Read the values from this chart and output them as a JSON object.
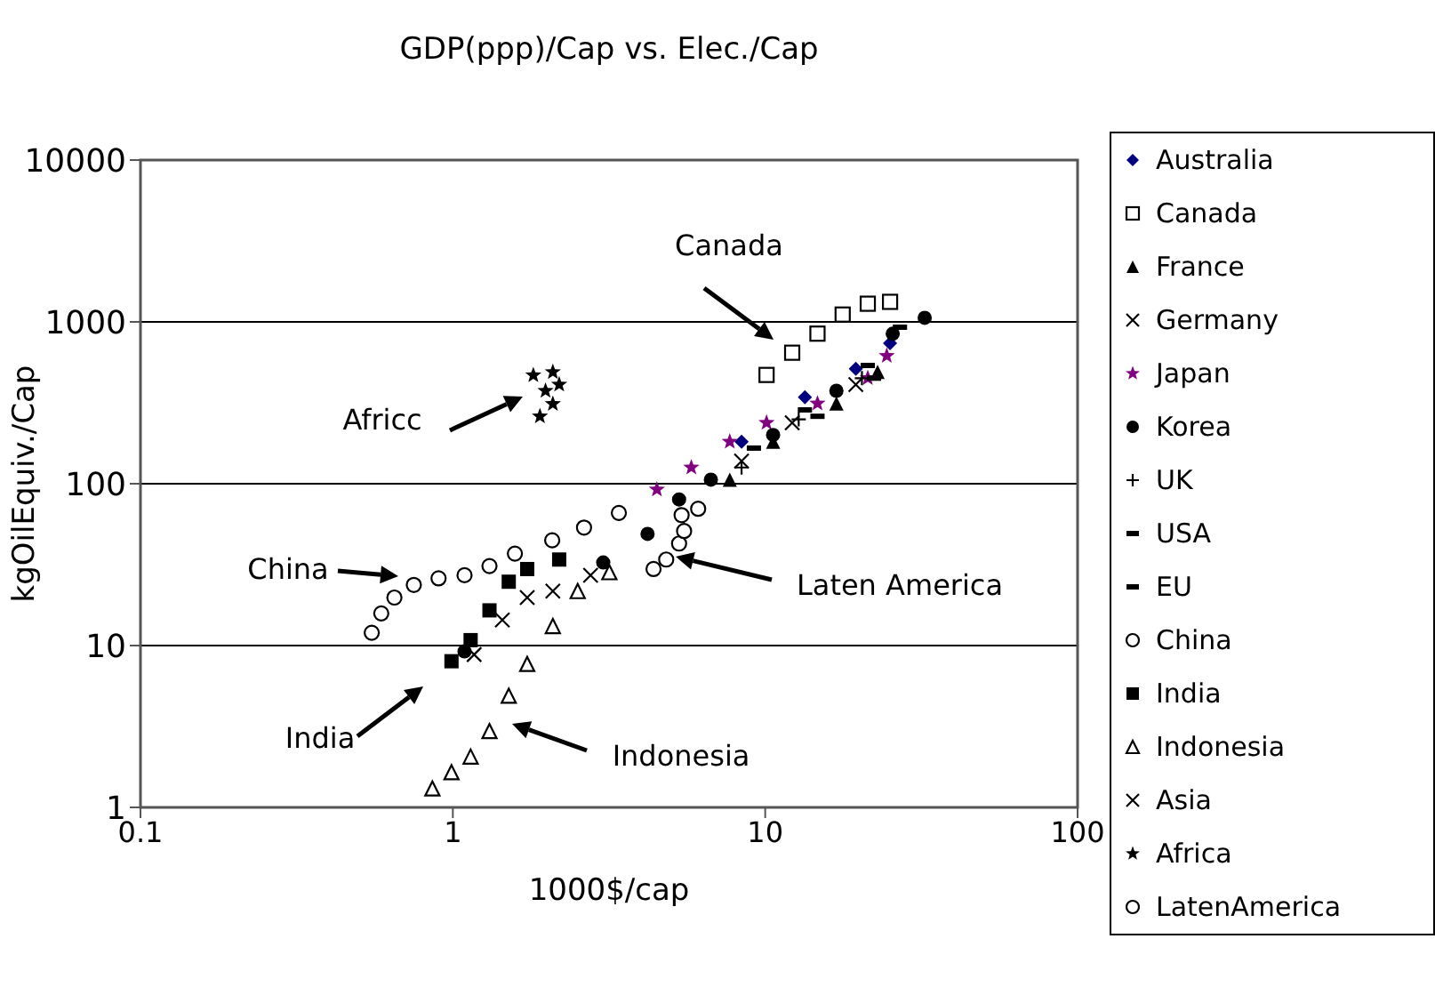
{
  "chart_data": {
    "type": "scatter",
    "title": "GDP(ppp)/Cap vs. Elec./Cap",
    "xlabel": "1000$/cap",
    "ylabel": "kgOilEquiv./Cap",
    "log": "xy",
    "xlim": [
      0.1,
      100
    ],
    "xticks": [
      0.1,
      1,
      10,
      100
    ],
    "ylim": [
      1,
      10000
    ],
    "yticks": [
      1,
      10,
      100,
      1000,
      10000
    ],
    "grid": "y",
    "legend": "right",
    "series": [
      {
        "name": "Australia",
        "color": "#000080",
        "marker": "diamond",
        "x": [
          8.4,
          13.4,
          19.5,
          25.1
        ],
        "values": [
          182,
          342,
          513,
          738
        ]
      },
      {
        "name": "Canada",
        "color": "#000000",
        "marker": "square-open",
        "x": [
          10.1,
          12.2,
          14.7,
          17.7,
          21.3,
          25.1
        ],
        "values": [
          470,
          645,
          846,
          1110,
          1295,
          1330
        ]
      },
      {
        "name": "France",
        "color": "#000000",
        "marker": "triangle",
        "x": [
          7.7,
          10.6,
          16.9,
          22.9
        ],
        "values": [
          106,
          182,
          313,
          491
        ]
      },
      {
        "name": "Germany",
        "color": "#000000",
        "marker": "cross",
        "x": [
          8.4,
          12.2,
          19.5
        ],
        "values": [
          138,
          238,
          410
        ]
      },
      {
        "name": "Japan",
        "color": "#800080",
        "marker": "star",
        "x": [
          4.5,
          5.8,
          7.7,
          10.1,
          14.7,
          21.3,
          24.5
        ],
        "values": [
          92,
          126,
          182,
          238,
          313,
          449,
          617
        ]
      },
      {
        "name": "Korea",
        "color": "#000000",
        "marker": "circle",
        "x": [
          1.09,
          3.03,
          4.2,
          5.3,
          6.7,
          10.6,
          16.9,
          25.6,
          32.4
        ],
        "values": [
          9.2,
          32.6,
          49,
          80,
          106,
          200,
          375,
          845,
          1060
        ]
      },
      {
        "name": "UK",
        "color": "#000000",
        "marker": "plus",
        "x": [
          8.4,
          12.8,
          20.4
        ],
        "values": [
          126,
          250,
          449
        ]
      },
      {
        "name": "USA",
        "color": "#000000",
        "x": [
          13.4,
          21.3,
          27
        ],
        "values": [
          286,
          538,
          927
        ]
      },
      {
        "name": "EU",
        "color": "#000000",
        "x": [
          9.2,
          14.7,
          22.3
        ],
        "values": [
          166,
          261,
          449
        ]
      },
      {
        "name": "China",
        "color": "#000000",
        "marker": "circle-open",
        "x": [
          0.55,
          0.59,
          0.65,
          0.75,
          0.9,
          1.09,
          1.31,
          1.58,
          2.08,
          2.63,
          3.4
        ],
        "values": [
          12,
          15.8,
          19.8,
          23.7,
          26,
          27.2,
          31,
          37,
          44.7,
          53.6,
          66
        ]
      },
      {
        "name": "India",
        "color": "#000000",
        "marker": "square",
        "x": [
          0.99,
          1.14,
          1.31,
          1.51,
          1.73,
          2.19
        ],
        "values": [
          8,
          10.8,
          16.5,
          24.8,
          29.7,
          34
        ]
      },
      {
        "name": "Indonesia",
        "color": "#000000",
        "marker": "triangle-open",
        "x": [
          0.86,
          0.99,
          1.14,
          1.31,
          1.51,
          1.73,
          2.09,
          2.51,
          3.17
        ],
        "values": [
          1.31,
          1.65,
          2.06,
          2.96,
          4.9,
          7.7,
          13.2,
          21.7,
          28.4
        ]
      },
      {
        "name": "Asia",
        "color": "#000000",
        "marker": "cross",
        "x": [
          1.17,
          1.44,
          1.73,
          2.09,
          2.76
        ],
        "values": [
          8.8,
          14.4,
          19.8,
          21.7,
          27.2
        ]
      },
      {
        "name": "Africa",
        "color": "#000000",
        "marker": "star",
        "x": [
          1.81,
          2.09,
          1.98,
          2.09,
          1.9,
          2.19
        ],
        "values": [
          468,
          490,
          375,
          311,
          261,
          410
        ]
      },
      {
        "name": "LatenAmerica",
        "color": "#000000",
        "marker": "circle-open",
        "x": [
          4.39,
          4.82,
          5.3,
          5.5,
          5.4,
          6.1
        ],
        "values": [
          29.7,
          34,
          42.7,
          51,
          64,
          70
        ]
      }
    ],
    "annotations": [
      "Canada",
      "Africc",
      "China",
      "India",
      "Indonesia",
      "Laten America"
    ]
  }
}
